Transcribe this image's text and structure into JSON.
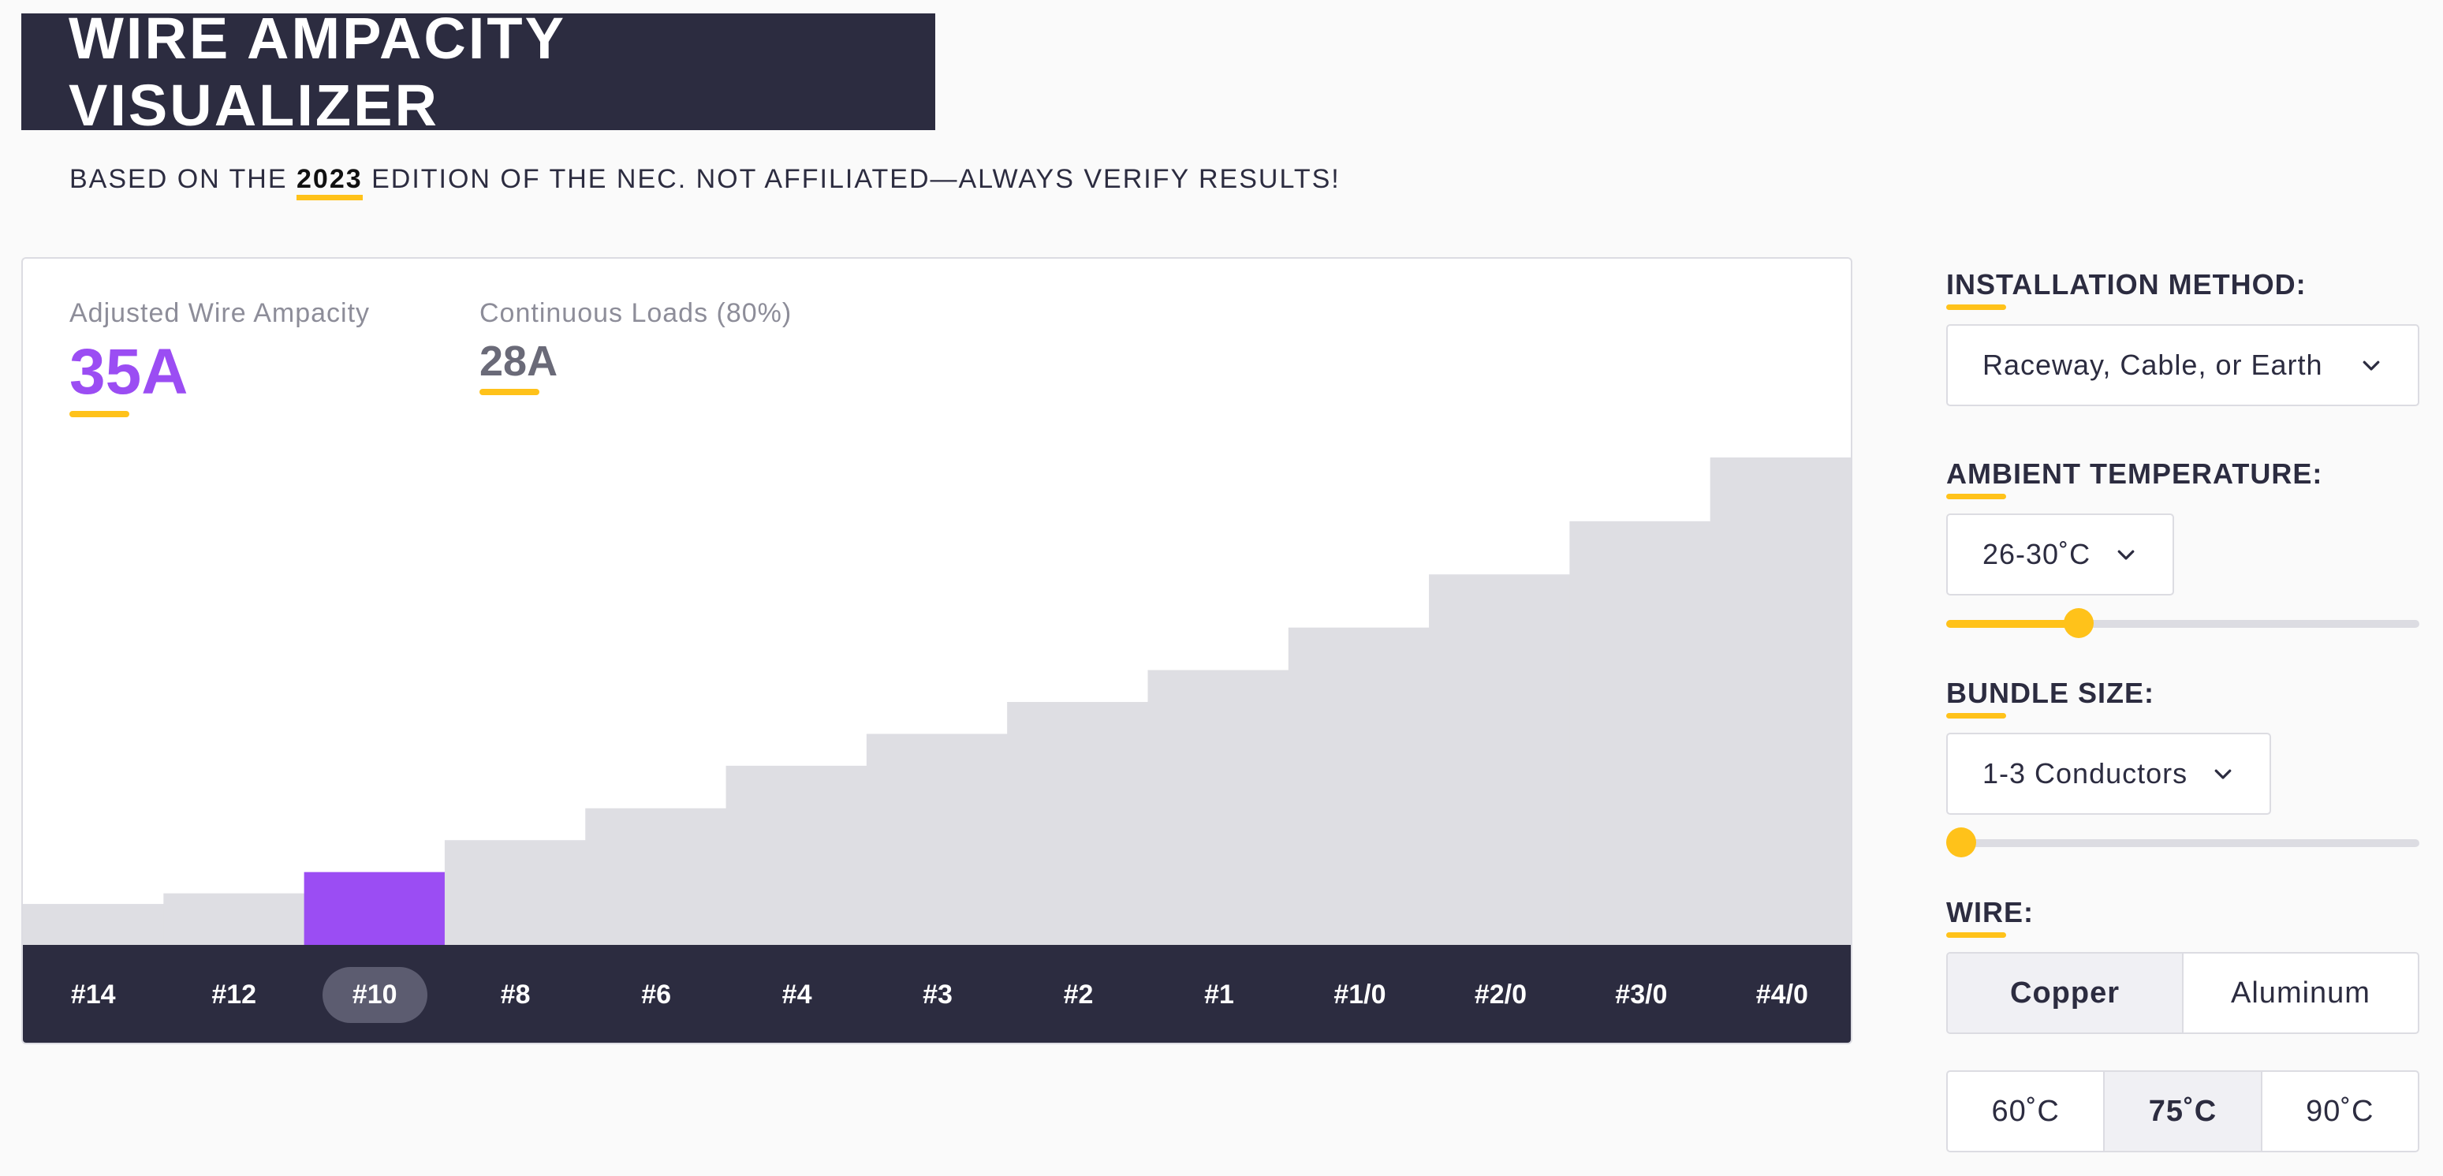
{
  "header": {
    "title": "WIRE AMPACITY VISUALIZER",
    "subtitle_pre": "BASED ON THE ",
    "subtitle_year": "2023",
    "subtitle_post": " EDITION OF THE NEC. NOT AFFILIATED—ALWAYS VERIFY RESULTS!"
  },
  "stats": {
    "adjusted_label": "Adjusted Wire Ampacity",
    "adjusted_value": "35A",
    "continuous_label": "Continuous Loads (80%)",
    "continuous_value": "28A"
  },
  "chart_data": {
    "type": "bar",
    "categories": [
      "#14",
      "#12",
      "#10",
      "#8",
      "#6",
      "#4",
      "#3",
      "#2",
      "#1",
      "#1/0",
      "#2/0",
      "#3/0",
      "#4/0"
    ],
    "values": [
      20,
      25,
      35,
      50,
      65,
      85,
      100,
      115,
      130,
      150,
      175,
      200,
      230
    ],
    "selected": "#10",
    "ylim": [
      0,
      230
    ],
    "colors": {
      "bar": "#dedee3",
      "selected": "#9b4df3"
    }
  },
  "controls": {
    "installation": {
      "label": "INSTALLATION METHOD:",
      "value": "Raceway, Cable, or Earth"
    },
    "ambient": {
      "label": "AMBIENT TEMPERATURE:",
      "value": "26-30˚C",
      "slider_fraction": 0.28
    },
    "bundle": {
      "label": "BUNDLE SIZE:",
      "value": "1-3 Conductors",
      "slider_fraction": 0.0
    },
    "wire": {
      "label": "WIRE:",
      "materials": [
        "Copper",
        "Aluminum"
      ],
      "selected_material": "Copper",
      "ratings": [
        "60˚C",
        "75˚C",
        "90˚C"
      ],
      "selected_rating": "75˚C"
    }
  },
  "icons": {
    "dropdown": "chevron-down-icon"
  },
  "colors": {
    "accent": "#ffc21a",
    "primary": "#9b4df3",
    "dark": "#2c2c40"
  }
}
